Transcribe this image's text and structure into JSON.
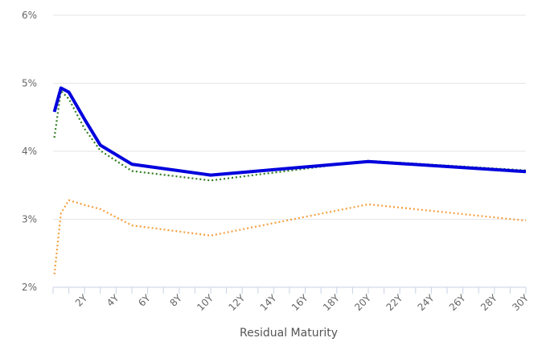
{
  "chart_data": {
    "type": "line",
    "title": "",
    "xlabel": "Residual Maturity",
    "ylabel": "",
    "xlim": [
      0,
      30
    ],
    "ylim": [
      2,
      6
    ],
    "yticks": [
      2,
      3,
      4,
      5,
      6
    ],
    "ytick_labels": [
      "2%",
      "3%",
      "4%",
      "5%",
      "6%"
    ],
    "xticks": [
      2,
      4,
      6,
      8,
      10,
      12,
      14,
      16,
      18,
      20,
      22,
      24,
      26,
      28,
      30
    ],
    "xtick_labels": [
      "2Y",
      "4Y",
      "6Y",
      "8Y",
      "10Y",
      "12Y",
      "14Y",
      "16Y",
      "18Y",
      "20Y",
      "22Y",
      "24Y",
      "26Y",
      "28Y",
      "30Y"
    ],
    "grid": true,
    "legend": "none",
    "series": [
      {
        "style": "solid",
        "color": "#0000dd",
        "x": [
          0.08,
          0.5,
          1,
          2,
          3,
          5,
          10,
          20,
          30
        ],
        "y": [
          4.58,
          4.93,
          4.87,
          4.47,
          4.09,
          3.81,
          3.65,
          3.85,
          3.7
        ]
      },
      {
        "style": "dotted",
        "color": "#2e7d1e",
        "x": [
          0.08,
          0.5,
          1,
          2,
          3,
          5,
          10,
          20,
          30
        ],
        "y": [
          4.2,
          4.89,
          4.77,
          4.33,
          4.01,
          3.71,
          3.57,
          3.86,
          3.72
        ]
      },
      {
        "style": "dotted",
        "color": "#f5a040",
        "x": [
          0.08,
          0.5,
          1,
          2,
          3,
          5,
          10,
          20,
          30
        ],
        "y": [
          2.19,
          3.09,
          3.28,
          3.21,
          3.15,
          2.91,
          2.76,
          3.22,
          2.98
        ]
      }
    ]
  }
}
